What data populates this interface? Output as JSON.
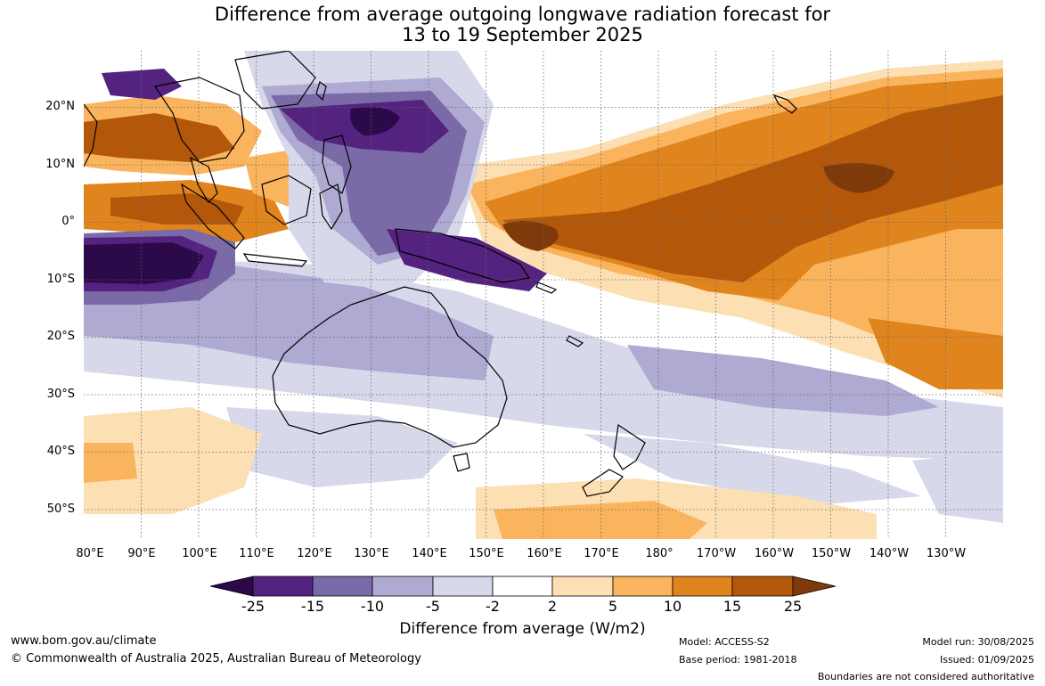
{
  "title": {
    "line1": "Difference from average outgoing longwave radiation forecast for",
    "line2": "13 to 19 September 2025"
  },
  "map": {
    "lat_labels": [
      "20°N",
      "10°N",
      "0°",
      "10°S",
      "20°S",
      "30°S",
      "40°S",
      "50°S"
    ],
    "lon_labels": [
      "80°E",
      "90°E",
      "100°E",
      "110°E",
      "120°E",
      "130°E",
      "140°E",
      "150°E",
      "160°E",
      "170°E",
      "180°",
      "170°W",
      "160°W",
      "150°W",
      "140°W",
      "130°W"
    ],
    "extent": {
      "lon": [
        80,
        240
      ],
      "lat": [
        -55,
        30
      ]
    }
  },
  "colorbar": {
    "tick_labels": [
      "-25",
      "-15",
      "-10",
      "-5",
      "-2",
      "2",
      "5",
      "10",
      "15",
      "25"
    ],
    "colors": [
      "#2c0a4a",
      "#54237f",
      "#7b6aa8",
      "#aeaad2",
      "#d8d8eb",
      "#ffffff",
      "#fddfb4",
      "#fbb45e",
      "#e0841e",
      "#b3580b",
      "#7e3a0a"
    ],
    "label": "Difference from average (W/m2)"
  },
  "footer": {
    "website": "www.bom.gov.au/climate",
    "copyright": "© Commonwealth of Australia 2025, Australian Bureau of Meteorology",
    "model": "Model: ACCESS-S2",
    "base_period": "Base period: 1981-2018",
    "model_run": "Model run: 30/08/2025",
    "issued": "Issued: 01/09/2025",
    "disclaimer": "Boundaries are not considered authoritative"
  }
}
